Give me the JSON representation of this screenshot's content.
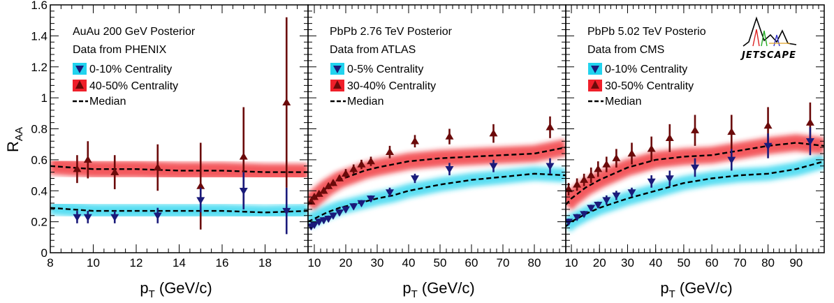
{
  "figure": {
    "ylabel_main": "R",
    "ylabel_sub": "AA",
    "xlabel_main": "p",
    "xlabel_sub": "T",
    "xlabel_unit": " (GeV/c)",
    "logo_text": "JETSCAPE",
    "colors": {
      "central_band": "#22d3ee",
      "peripheral_band": "#ef1f2a",
      "central_marker": "#1a1a7a",
      "peripheral_marker": "#6b0a0a",
      "legend_central_box": "#22d3ee",
      "legend_peripheral_box": "#ef1f2a"
    }
  },
  "chart_data": [
    {
      "type": "scatter",
      "legend": [
        "AuAu 200 GeV Posterior",
        "Data from PHENIX",
        "0-10% Centrality",
        "40-50% Centrality",
        "Median"
      ],
      "xlim": [
        8,
        20
      ],
      "ylim": [
        0,
        1.6
      ],
      "xticks": [
        8,
        10,
        12,
        14,
        16,
        18
      ],
      "yticks": [
        0,
        0.2,
        0.4,
        0.6,
        0.8,
        1,
        1.2,
        1.4,
        1.6
      ],
      "median_central": {
        "x": [
          8,
          10,
          12,
          14,
          16,
          18,
          20
        ],
        "y": [
          0.29,
          0.27,
          0.27,
          0.27,
          0.27,
          0.26,
          0.27
        ]
      },
      "median_peripheral": {
        "x": [
          8,
          10,
          12,
          14,
          16,
          18,
          20
        ],
        "y": [
          0.56,
          0.54,
          0.54,
          0.53,
          0.53,
          0.52,
          0.52
        ]
      },
      "data_central": {
        "x": [
          9.25,
          9.75,
          11,
          13,
          15,
          17,
          19
        ],
        "y": [
          0.23,
          0.23,
          0.23,
          0.24,
          0.34,
          0.4,
          0.27
        ],
        "err": [
          0.04,
          0.04,
          0.04,
          0.05,
          0.08,
          0.12,
          0.15
        ]
      },
      "data_peripheral": {
        "x": [
          9.25,
          9.75,
          11,
          13,
          15,
          17,
          19
        ],
        "y": [
          0.54,
          0.6,
          0.52,
          0.55,
          0.43,
          0.62,
          0.97
        ],
        "err": [
          0.09,
          0.12,
          0.11,
          0.15,
          0.28,
          0.32,
          0.55
        ]
      }
    },
    {
      "type": "scatter",
      "legend": [
        "PbPb 2.76 TeV Posterior",
        "Data from ATLAS",
        "0-5% Centrality",
        "30-40% Centrality",
        "Median"
      ],
      "xlim": [
        8,
        90
      ],
      "ylim": [
        0,
        1.6
      ],
      "xticks": [
        10,
        20,
        30,
        40,
        50,
        60,
        70,
        80
      ],
      "yticks": [
        0,
        0.2,
        0.4,
        0.6,
        0.8,
        1,
        1.2,
        1.4,
        1.6
      ],
      "median_central": {
        "x": [
          8,
          10,
          14,
          18,
          22,
          26,
          30,
          35,
          40,
          50,
          60,
          70,
          80,
          90
        ],
        "y": [
          0.2,
          0.22,
          0.26,
          0.29,
          0.31,
          0.33,
          0.35,
          0.37,
          0.4,
          0.44,
          0.47,
          0.49,
          0.51,
          0.5
        ]
      },
      "median_peripheral": {
        "x": [
          8,
          10,
          14,
          18,
          22,
          26,
          30,
          35,
          40,
          50,
          60,
          70,
          80,
          90
        ],
        "y": [
          0.31,
          0.35,
          0.42,
          0.47,
          0.5,
          0.53,
          0.55,
          0.57,
          0.59,
          0.61,
          0.62,
          0.63,
          0.64,
          0.68
        ]
      },
      "data_central": {
        "x": [
          9,
          10,
          11.5,
          13,
          14.5,
          16,
          18,
          20,
          22.5,
          25,
          28,
          34,
          42,
          53,
          67,
          85
        ],
        "y": [
          0.17,
          0.18,
          0.2,
          0.21,
          0.22,
          0.24,
          0.26,
          0.28,
          0.3,
          0.32,
          0.35,
          0.39,
          0.48,
          0.54,
          0.56,
          0.56
        ],
        "err": [
          0.02,
          0.02,
          0.02,
          0.02,
          0.02,
          0.02,
          0.02,
          0.02,
          0.02,
          0.02,
          0.02,
          0.03,
          0.03,
          0.04,
          0.04,
          0.05
        ]
      },
      "data_peripheral": {
        "x": [
          9,
          10,
          11.5,
          13,
          14.5,
          16,
          18,
          20,
          22.5,
          25,
          28,
          34,
          42,
          53,
          67,
          85
        ],
        "y": [
          0.33,
          0.36,
          0.38,
          0.4,
          0.43,
          0.45,
          0.48,
          0.51,
          0.54,
          0.57,
          0.59,
          0.65,
          0.72,
          0.75,
          0.77,
          0.81
        ],
        "err": [
          0.02,
          0.02,
          0.02,
          0.02,
          0.02,
          0.02,
          0.02,
          0.03,
          0.03,
          0.03,
          0.03,
          0.04,
          0.04,
          0.05,
          0.06,
          0.07
        ]
      }
    },
    {
      "type": "scatter",
      "legend": [
        "PbPb 5.02 TeV Posterio",
        "Data from CMS",
        "0-10% Centrality",
        "30-50% Centrality",
        "Median"
      ],
      "xlim": [
        8,
        100
      ],
      "ylim": [
        0,
        1.6
      ],
      "xticks": [
        10,
        20,
        30,
        40,
        50,
        60,
        70,
        80,
        90
      ],
      "yticks": [
        0,
        0.2,
        0.4,
        0.6,
        0.8,
        1,
        1.2,
        1.4,
        1.6
      ],
      "median_central": {
        "x": [
          8,
          10,
          15,
          20,
          25,
          30,
          40,
          50,
          60,
          70,
          80,
          90,
          100
        ],
        "y": [
          0.17,
          0.2,
          0.25,
          0.29,
          0.32,
          0.35,
          0.4,
          0.45,
          0.48,
          0.5,
          0.51,
          0.54,
          0.59
        ]
      },
      "median_peripheral": {
        "x": [
          8,
          10,
          15,
          20,
          25,
          30,
          40,
          50,
          60,
          70,
          80,
          90,
          100
        ],
        "y": [
          0.31,
          0.35,
          0.42,
          0.47,
          0.51,
          0.55,
          0.6,
          0.62,
          0.63,
          0.66,
          0.69,
          0.71,
          0.69
        ]
      },
      "data_central": {
        "x": [
          9,
          12,
          14.5,
          17,
          19.5,
          22.5,
          26,
          31.5,
          38.5,
          45,
          54,
          67,
          80,
          95
        ],
        "y": [
          0.2,
          0.23,
          0.25,
          0.29,
          0.31,
          0.34,
          0.37,
          0.39,
          0.46,
          0.48,
          0.55,
          0.6,
          0.69,
          0.72
        ],
        "err": [
          0.02,
          0.02,
          0.02,
          0.02,
          0.02,
          0.03,
          0.03,
          0.03,
          0.04,
          0.05,
          0.06,
          0.07,
          0.08,
          0.09
        ]
      },
      "data_peripheral": {
        "x": [
          9,
          12,
          14.5,
          17,
          19.5,
          22.5,
          26,
          31.5,
          38.5,
          45,
          54,
          67,
          80,
          95
        ],
        "y": [
          0.41,
          0.44,
          0.47,
          0.5,
          0.54,
          0.57,
          0.61,
          0.64,
          0.67,
          0.74,
          0.79,
          0.78,
          0.82,
          0.84
        ],
        "err": [
          0.04,
          0.04,
          0.04,
          0.05,
          0.05,
          0.05,
          0.06,
          0.07,
          0.08,
          0.09,
          0.1,
          0.11,
          0.12,
          0.13
        ]
      }
    }
  ]
}
